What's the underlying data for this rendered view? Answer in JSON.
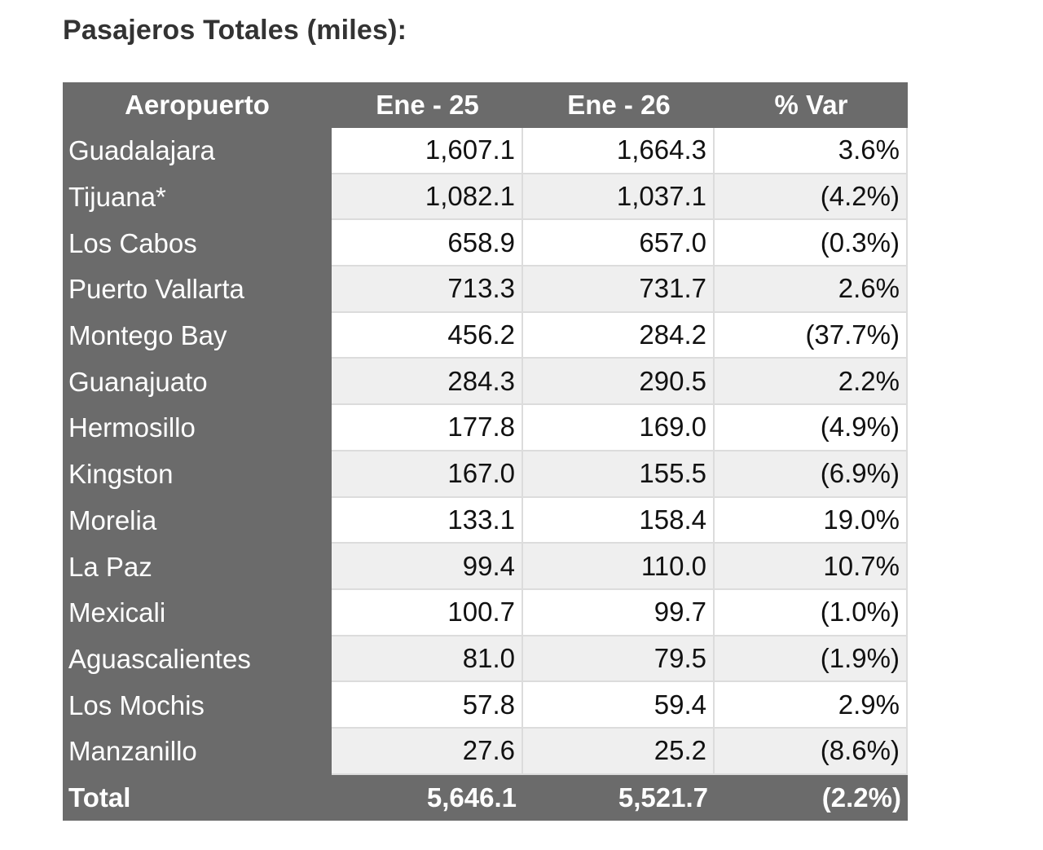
{
  "title": "Pasajeros Totales (miles):",
  "headers": {
    "airport": "Aeropuerto",
    "jan25": "Ene - 25",
    "jan26": "Ene - 26",
    "var": "% Var"
  },
  "rows": [
    {
      "airport": "Guadalajara",
      "jan25": "1,607.1",
      "jan26": "1,664.3",
      "var": "3.6%"
    },
    {
      "airport": "Tijuana*",
      "jan25": "1,082.1",
      "jan26": "1,037.1",
      "var": "(4.2%)"
    },
    {
      "airport": "Los Cabos",
      "jan25": "658.9",
      "jan26": "657.0",
      "var": "(0.3%)"
    },
    {
      "airport": "Puerto Vallarta",
      "jan25": "713.3",
      "jan26": "731.7",
      "var": "2.6%"
    },
    {
      "airport": "Montego Bay",
      "jan25": "456.2",
      "jan26": "284.2",
      "var": "(37.7%)"
    },
    {
      "airport": "Guanajuato",
      "jan25": "284.3",
      "jan26": "290.5",
      "var": "2.2%"
    },
    {
      "airport": "Hermosillo",
      "jan25": "177.8",
      "jan26": "169.0",
      "var": "(4.9%)"
    },
    {
      "airport": "Kingston",
      "jan25": "167.0",
      "jan26": "155.5",
      "var": "(6.9%)"
    },
    {
      "airport": "Morelia",
      "jan25": "133.1",
      "jan26": "158.4",
      "var": "19.0%"
    },
    {
      "airport": "La Paz",
      "jan25": "99.4",
      "jan26": "110.0",
      "var": "10.7%"
    },
    {
      "airport": "Mexicali",
      "jan25": "100.7",
      "jan26": "99.7",
      "var": "(1.0%)"
    },
    {
      "airport": "Aguascalientes",
      "jan25": "81.0",
      "jan26": "79.5",
      "var": "(1.9%)"
    },
    {
      "airport": "Los Mochis",
      "jan25": "57.8",
      "jan26": "59.4",
      "var": "2.9%"
    },
    {
      "airport": "Manzanillo",
      "jan25": "27.6",
      "jan26": "25.2",
      "var": "(8.6%)"
    }
  ],
  "total": {
    "label": "Total",
    "jan25": "5,646.1",
    "jan26": "5,521.7",
    "var": "(2.2%)"
  },
  "colors": {
    "header_bg": "#6b6b6b",
    "row_alt_bg": "#efefef",
    "title_text": "#333333"
  }
}
